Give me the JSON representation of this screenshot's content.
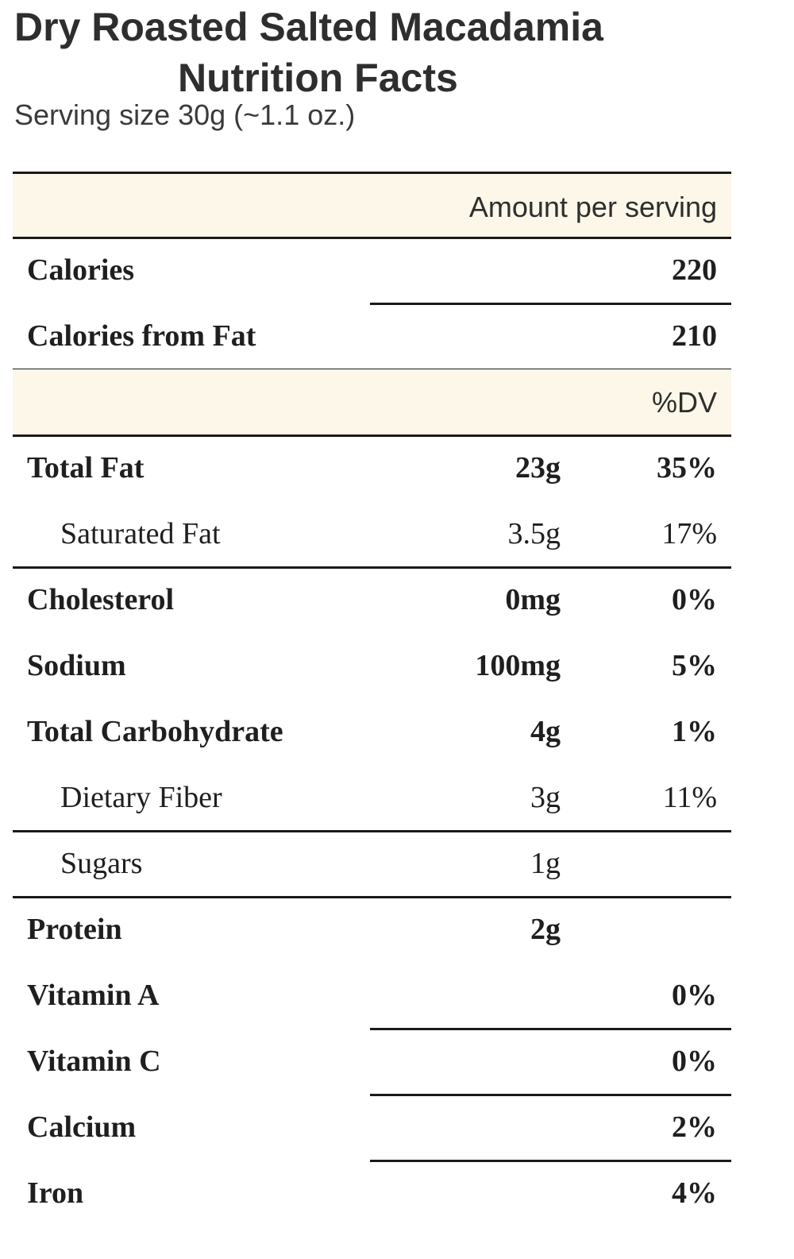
{
  "title": {
    "line1": "Dry Roasted Salted Macadamia",
    "line2": "Nutrition Facts"
  },
  "serving_size": "Serving size 30g (~1.1 oz.)",
  "header": {
    "amount_per_serving": "Amount per serving",
    "dv_label": "%DV"
  },
  "calories": {
    "label": "Calories",
    "value": "220"
  },
  "calories_from_fat": {
    "label": "Calories from Fat",
    "value": "210"
  },
  "nutrients": [
    {
      "label": "Total Fat",
      "amount": "23g",
      "dv": "35%"
    },
    {
      "label": "Saturated Fat",
      "amount": "3.5g",
      "dv": "17%"
    },
    {
      "label": "Cholesterol",
      "amount": "0mg",
      "dv": "0%"
    },
    {
      "label": "Sodium",
      "amount": "100mg",
      "dv": "5%"
    },
    {
      "label": "Total Carbohydrate",
      "amount": "4g",
      "dv": "1%"
    },
    {
      "label": "Dietary Fiber",
      "amount": "3g",
      "dv": "11%"
    },
    {
      "label": "Sugars",
      "amount": "1g",
      "dv": ""
    },
    {
      "label": "Protein",
      "amount": "2g",
      "dv": ""
    }
  ],
  "vitamins": [
    {
      "label": "Vitamin A",
      "dv": "0%"
    },
    {
      "label": "Vitamin C",
      "dv": "0%"
    },
    {
      "label": "Calcium",
      "dv": "2%"
    },
    {
      "label": "Iron",
      "dv": "4%"
    }
  ],
  "colors": {
    "shaded_row": "#fcf7e9",
    "rule": "#1a1a1a"
  }
}
